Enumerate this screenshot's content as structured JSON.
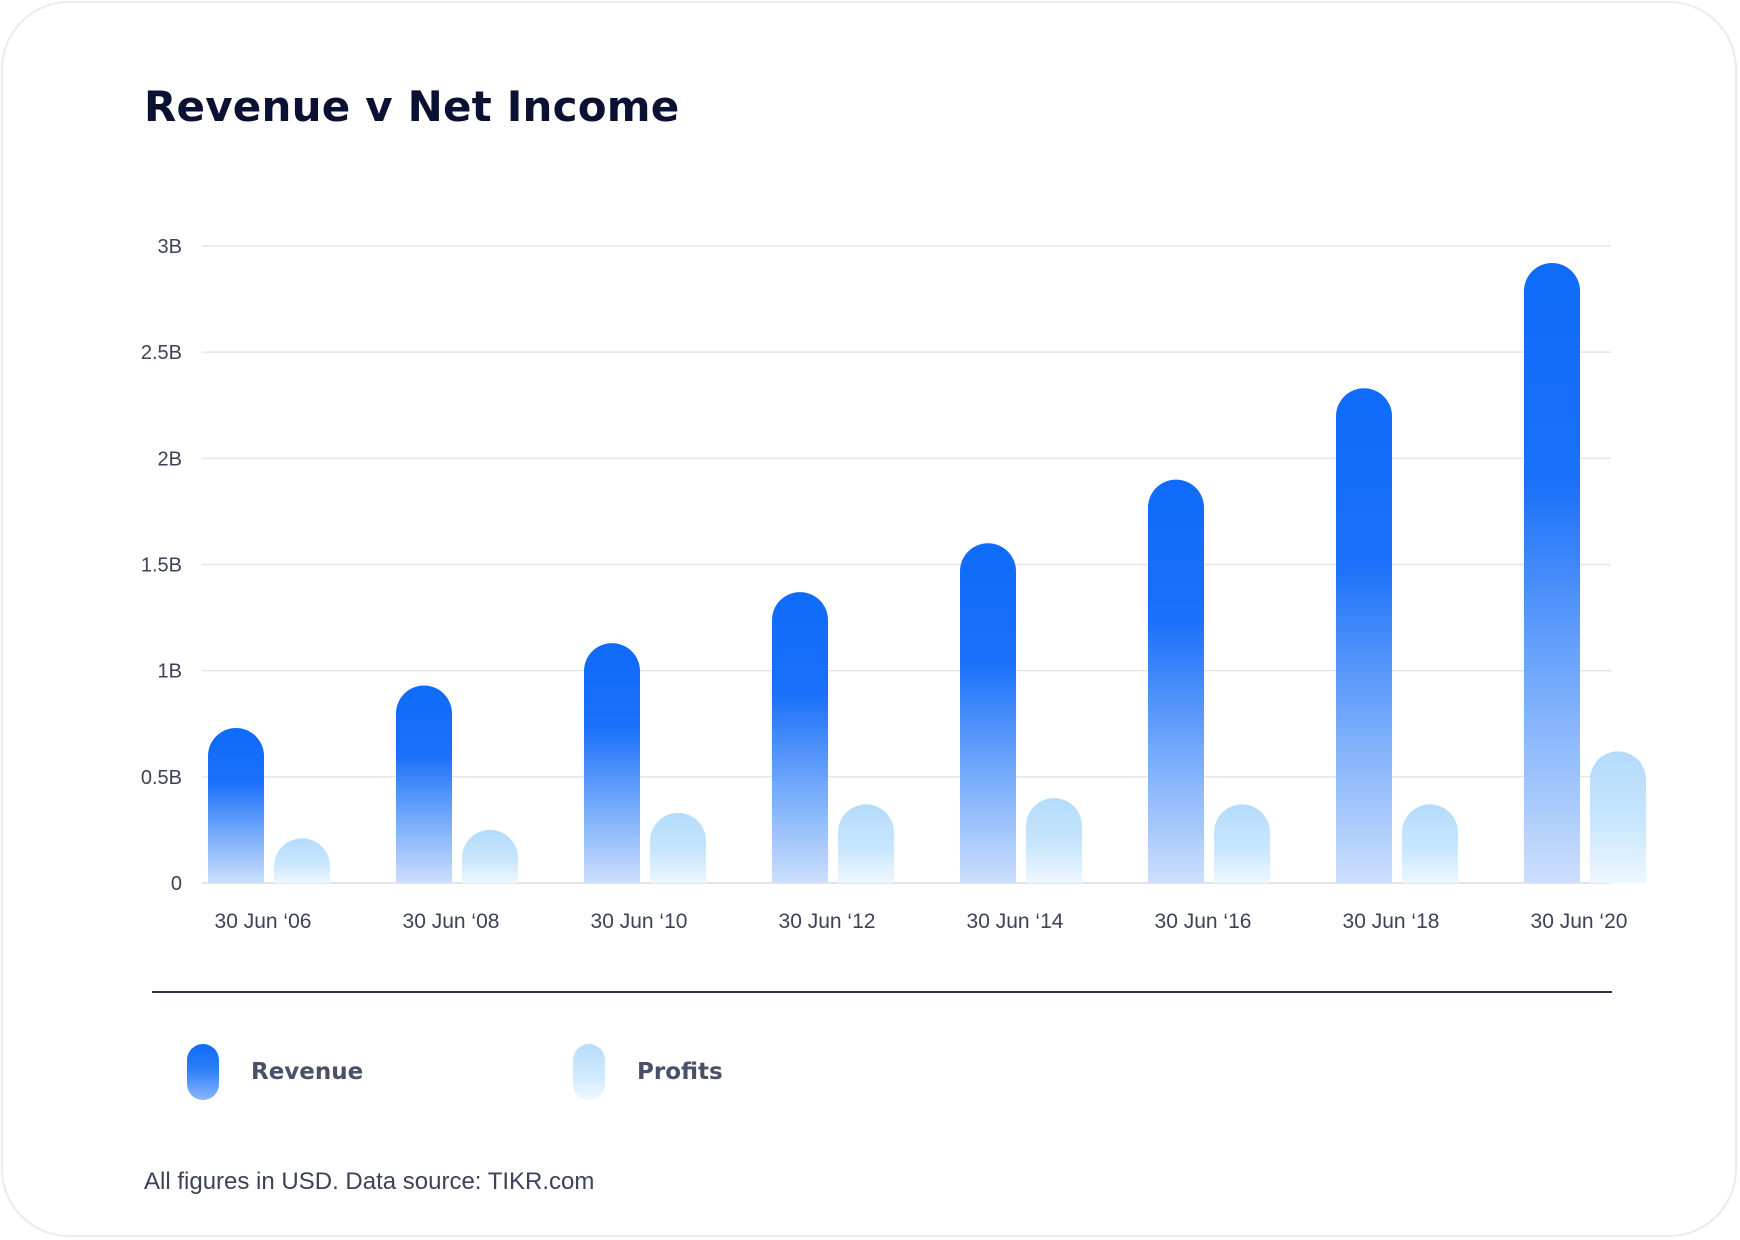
{
  "chart_data": {
    "type": "bar",
    "title": "Revenue v Net Income",
    "categories": [
      "30 Jun ‘06",
      "30 Jun ‘08",
      "30 Jun ‘10",
      "30 Jun ‘12",
      "30 Jun ‘14",
      "30 Jun ‘16",
      "30 Jun ‘18",
      "30 Jun ‘20"
    ],
    "series": [
      {
        "name": "Revenue",
        "values": [
          0.73,
          0.93,
          1.13,
          1.37,
          1.6,
          1.9,
          2.33,
          2.92
        ]
      },
      {
        "name": "Profits",
        "values": [
          0.21,
          0.25,
          0.33,
          0.37,
          0.4,
          0.37,
          0.37,
          0.62
        ]
      }
    ],
    "y_ticks": [
      {
        "value": 0,
        "label": "0"
      },
      {
        "value": 0.5,
        "label": "0.5B"
      },
      {
        "value": 1,
        "label": "1B"
      },
      {
        "value": 1.5,
        "label": "1.5B"
      },
      {
        "value": 2,
        "label": "2B"
      },
      {
        "value": 2.5,
        "label": "2.5B"
      },
      {
        "value": 3,
        "label": "3B"
      }
    ],
    "ylim": [
      0,
      3
    ],
    "grid": true,
    "legend_position": "bottom-left",
    "colors": {
      "revenue": "#0f6bfa",
      "profits": "#b7ddfc"
    }
  },
  "legend": {
    "revenue_label": "Revenue",
    "profits_label": "Profits"
  },
  "footnote": "All figures in USD. Data source: TIKR.com"
}
